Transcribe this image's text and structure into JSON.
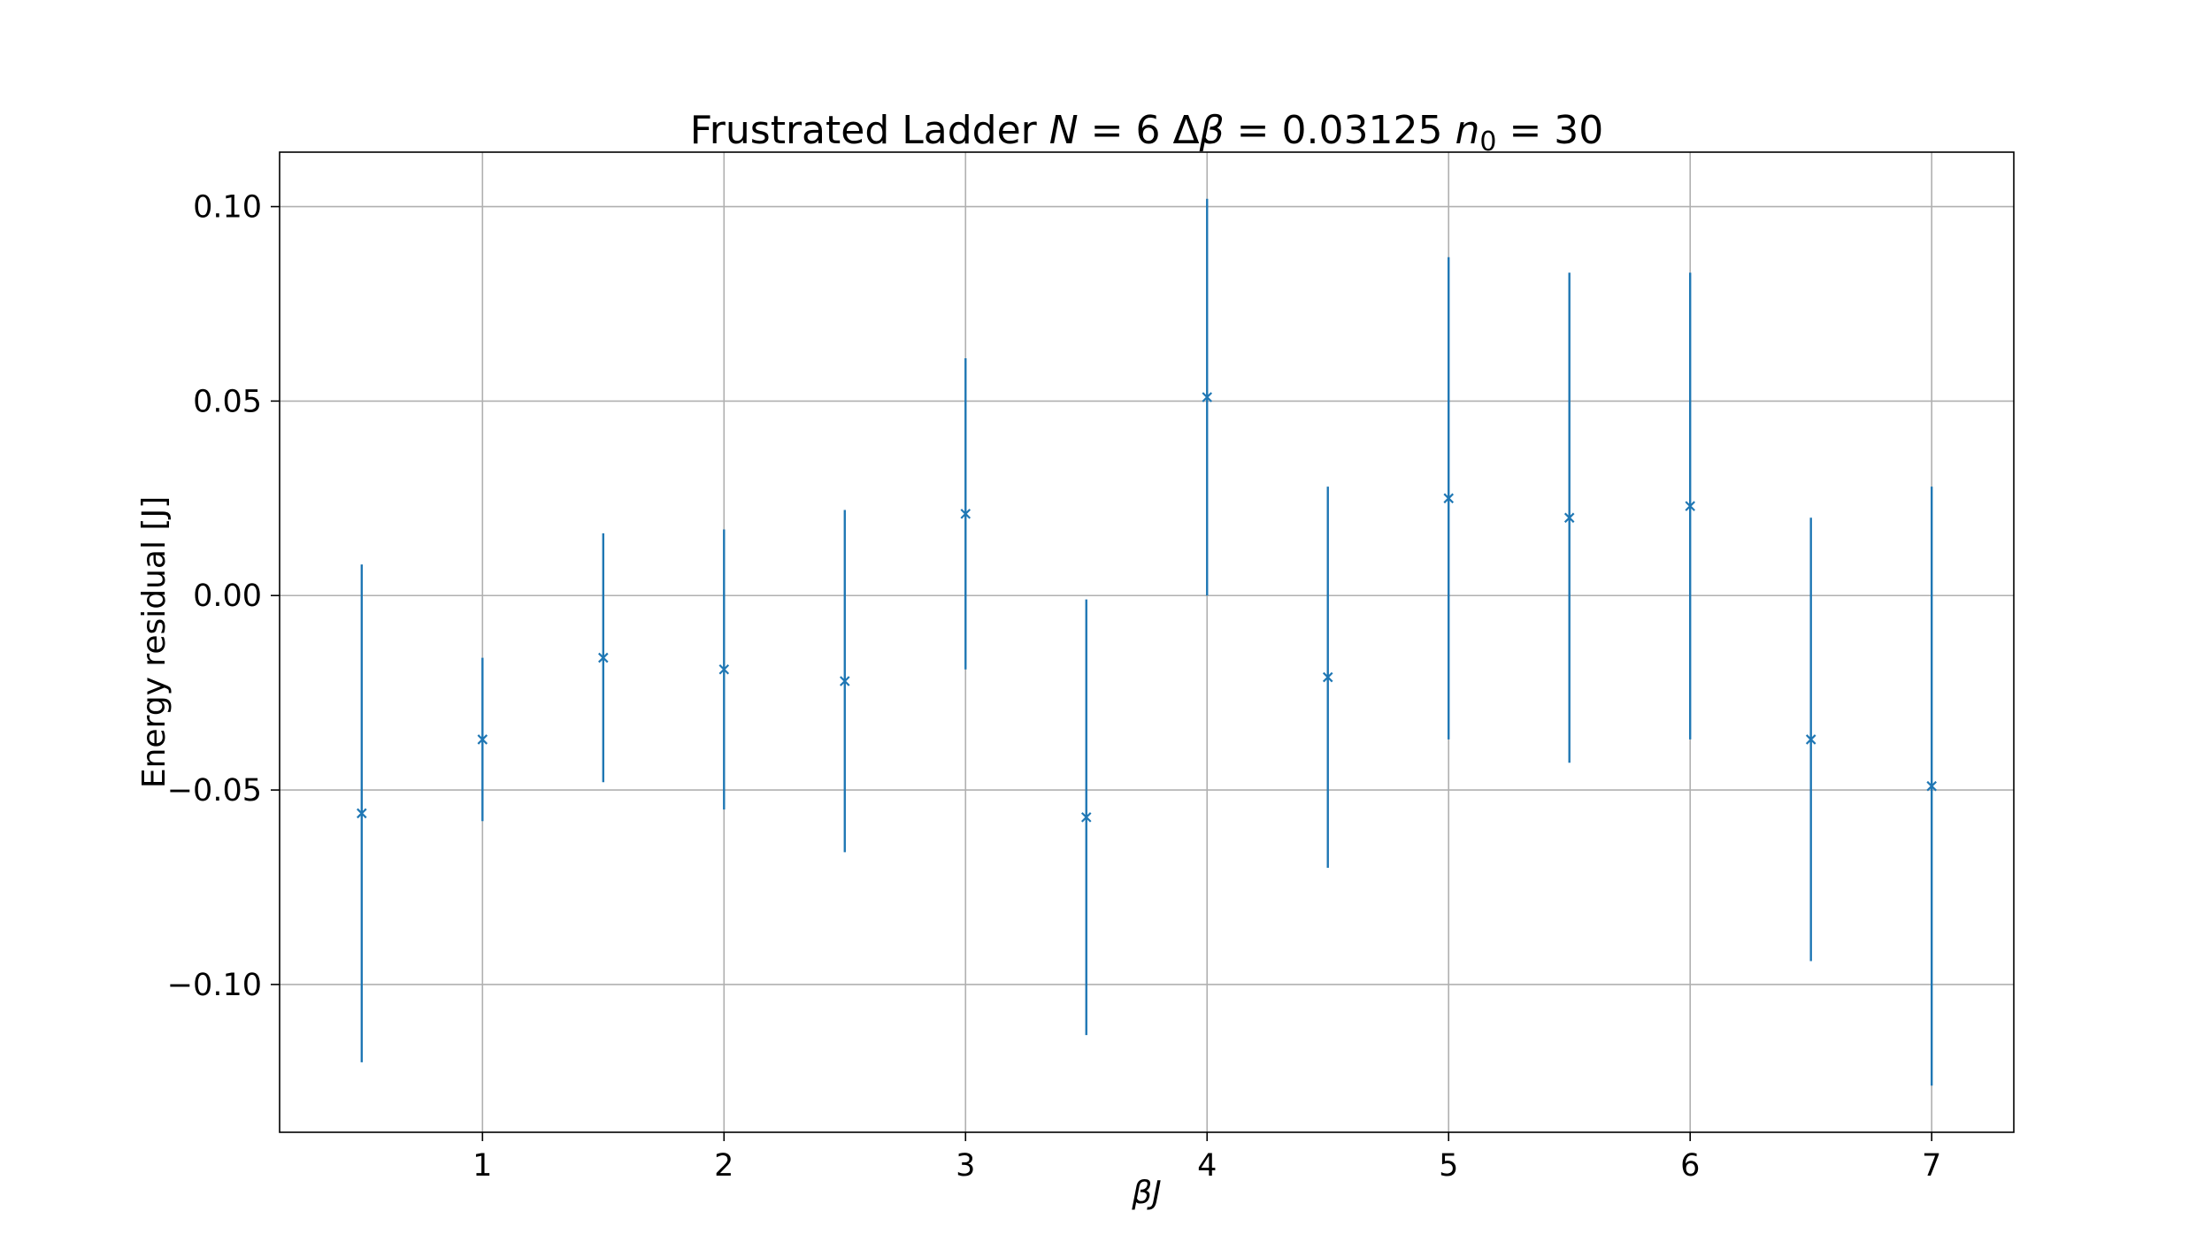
{
  "chart_data": {
    "type": "scatter",
    "title": "Frustrated Ladder N = 6 Δβ = 0.03125 n0 = 30",
    "xlabel": "βJ",
    "ylabel": "Energy residual [J]",
    "xlim": [
      0.16,
      7.34
    ],
    "ylim": [
      -0.138,
      0.114
    ],
    "xticks": [
      1,
      2,
      3,
      4,
      5,
      6,
      7
    ],
    "xtick_labels": [
      "1",
      "2",
      "3",
      "4",
      "5",
      "6",
      "7"
    ],
    "yticks": [
      0.1,
      0.05,
      0.0,
      -0.05,
      -0.1
    ],
    "ytick_labels": [
      "0.10",
      "0.05",
      "0.00",
      "−0.05",
      "−0.10"
    ],
    "grid": true,
    "color": "#1f77b4",
    "marker": "x",
    "series": [
      {
        "x": [
          0.5,
          1.0,
          1.5,
          2.0,
          2.5,
          3.0,
          3.5,
          4.0,
          4.5,
          5.0,
          5.5,
          6.0,
          6.5,
          7.0
        ],
        "y": [
          -0.056,
          -0.037,
          -0.016,
          -0.019,
          -0.022,
          0.021,
          -0.057,
          0.051,
          -0.021,
          0.025,
          0.02,
          0.023,
          -0.037,
          -0.049
        ],
        "yerr": [
          0.064,
          0.021,
          0.032,
          0.036,
          0.044,
          0.04,
          0.056,
          0.051,
          0.049,
          0.062,
          0.063,
          0.06,
          0.057,
          0.077
        ]
      }
    ]
  }
}
